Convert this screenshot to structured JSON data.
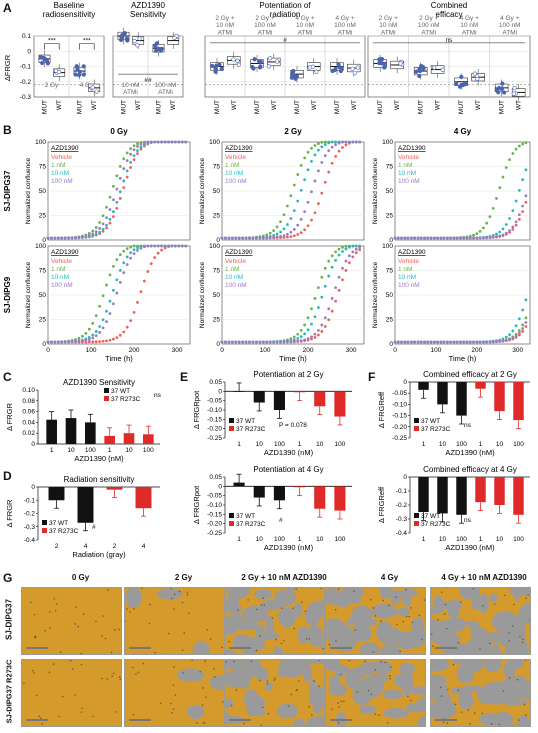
{
  "panel_letters": {
    "A": "A",
    "B": "B",
    "C": "C",
    "D": "D",
    "E": "E",
    "F": "F",
    "G": "G"
  },
  "colors": {
    "mut": "#4a64b0",
    "vehicle": "#f0605a",
    "c1": "#6ab24a",
    "c10": "#29b7b9",
    "c100": "#9a7ac4",
    "wt_bar": "#111111",
    "r273c_bar": "#e02a2a",
    "cell_orange": "#d59a2c",
    "cell_gray": "#9a9a9a"
  },
  "panelA": {
    "ylabel": "ΔFRGR",
    "yticks": [
      "0.1",
      "0",
      "-0.1",
      "-0.2",
      "-0.3"
    ],
    "groups": [
      {
        "title": "Baseline\nradiosensitivity",
        "header": [
          "",
          ""
        ],
        "sig_top": [
          "***",
          "***"
        ],
        "subs": [
          {
            "under": "2 Gy",
            "cats": [
              "MUT",
              "WT"
            ]
          },
          {
            "under": "4 Gy",
            "cats": [
              "MUT",
              "WT"
            ]
          }
        ]
      },
      {
        "title": "AZD1390\nSensitivity",
        "sig_bottom": "##",
        "subs": [
          {
            "under": "10 nM\nATMi",
            "cats": [
              "MUT",
              "WT"
            ]
          },
          {
            "under": "100 nM\nATMi",
            "cats": [
              "MUT",
              "WT"
            ]
          }
        ]
      },
      {
        "title": "Potentiation of\nradiation",
        "sig_mid": "#",
        "subs": [
          {
            "header": "2 Gy +\n10 nM\nATMi",
            "cats": [
              "MUT",
              "WT"
            ]
          },
          {
            "header": "2 Gy +\n100 nM\nATMi",
            "cats": [
              "MUT",
              "WT"
            ]
          },
          {
            "header": "4 Gy +\n10 nM\nATMi",
            "cats": [
              "MUT",
              "WT"
            ]
          },
          {
            "header": "4 Gy +\n100 nM\nATMi",
            "cats": [
              "MUT",
              "WT"
            ]
          }
        ]
      },
      {
        "title": "Combined\nefficacy",
        "sig_mid": "ns",
        "subs": [
          {
            "header": "2 Gy +\n10 nM\nATMi",
            "cats": [
              "MUT",
              "WT"
            ]
          },
          {
            "header": "2 Gy +\n100 nM\nATMi",
            "cats": [
              "MUT",
              "WT"
            ]
          },
          {
            "header": "4 Gy +\n10 nM\nATMi",
            "cats": [
              "MUT",
              "WT"
            ]
          },
          {
            "header": "4 Gy +\n100 nM\nATMi",
            "cats": [
              "MUT",
              "WT"
            ]
          }
        ]
      }
    ]
  },
  "panelB": {
    "col_titles": [
      "0 Gy",
      "2 Gy",
      "4 Gy"
    ],
    "row_titles": [
      "SJ-DIPG37",
      "SJ-DIPG9"
    ],
    "ylabel": "Normalized confluence",
    "xlabel": "Time (h)",
    "xticks": [
      "0",
      "100",
      "200",
      "300"
    ],
    "yticks": [
      "100",
      "75",
      "50",
      "25",
      "0"
    ],
    "legend_title": "AZD1390",
    "legend": [
      "Vehicle",
      "1 nM",
      "10 nM",
      "100 nM"
    ]
  },
  "chart_data": [
    {
      "type": "bar",
      "panel": "C",
      "title": "AZD1390 Sensitivity",
      "ylabel": "Δ FRGR",
      "xlabel": "AZD1390 (nM)",
      "categories": [
        "1",
        "10",
        "100"
      ],
      "ylim": [
        0,
        0.1
      ],
      "yticks": [
        "0.10",
        "0.08",
        "0.06",
        "0.04",
        "0.02",
        "0"
      ],
      "series": [
        {
          "name": "37 WT",
          "values": [
            0.045,
            0.048,
            0.04
          ]
        },
        {
          "name": "37 R273C",
          "values": [
            0.015,
            0.02,
            0.018
          ]
        }
      ],
      "annotation": "ns"
    },
    {
      "type": "bar",
      "panel": "D",
      "title": "Radiation sensitivity",
      "ylabel": "Δ FRGR",
      "xlabel": "Radiation (gray)",
      "categories": [
        "2",
        "4"
      ],
      "ylim": [
        -0.4,
        0
      ],
      "yticks": [
        "0",
        "-0.1",
        "-0.2",
        "-0.3",
        "-0.4"
      ],
      "series": [
        {
          "name": "37 WT",
          "values": [
            -0.1,
            -0.27
          ]
        },
        {
          "name": "37 R273C",
          "values": [
            -0.02,
            -0.16
          ]
        }
      ],
      "annotation": "#"
    },
    {
      "type": "bar",
      "panel": "E1",
      "title": "Potentiation at 2 Gy",
      "ylabel": "Δ FRGRpot",
      "xlabel": "AZD1390 (nM)",
      "categories": [
        "1",
        "10",
        "100"
      ],
      "ylim": [
        -0.25,
        0.05
      ],
      "yticks": [
        "0.05",
        "0",
        "-0.05",
        "-0.10",
        "-0.15",
        "-0.20",
        "-0.25"
      ],
      "series": [
        {
          "name": "37 WT",
          "values": [
            0.0,
            -0.06,
            -0.1
          ]
        },
        {
          "name": "37 R273C",
          "values": [
            -0.005,
            -0.08,
            -0.135
          ]
        }
      ],
      "annotation": "P = 0.078"
    },
    {
      "type": "bar",
      "panel": "E2",
      "title": "Potentiation at 4 Gy",
      "ylabel": "Δ FRGRpot",
      "xlabel": "AZD1390 (nM)",
      "categories": [
        "1",
        "10",
        "100"
      ],
      "ylim": [
        -0.25,
        0.05
      ],
      "yticks": [
        "0.05",
        "0",
        "-0.05",
        "-0.10",
        "-0.15",
        "-0.20",
        "-0.25"
      ],
      "series": [
        {
          "name": "37 WT",
          "values": [
            0.02,
            -0.06,
            -0.075
          ]
        },
        {
          "name": "37 R273C",
          "values": [
            -0.005,
            -0.12,
            -0.13
          ]
        }
      ],
      "annotation": "#"
    },
    {
      "type": "bar",
      "panel": "F1",
      "title": "Combined efficacy at 2 Gy",
      "ylabel": "Δ FRGReff",
      "xlabel": "AZD1390 (nM)",
      "categories": [
        "1",
        "10",
        "100"
      ],
      "ylim": [
        -0.25,
        0
      ],
      "yticks": [
        "0",
        "-0.05",
        "-0.10",
        "-0.15",
        "-0.20",
        "-0.25"
      ],
      "series": [
        {
          "name": "37 WT",
          "values": [
            -0.035,
            -0.1,
            -0.15
          ]
        },
        {
          "name": "37 R273C",
          "values": [
            -0.03,
            -0.13,
            -0.17
          ]
        }
      ],
      "annotation": "ns"
    },
    {
      "type": "bar",
      "panel": "F2",
      "title": "Combined efficacy at 4 Gy",
      "ylabel": "Δ FRGReff",
      "xlabel": "AZD1390 (nM)",
      "categories": [
        "1",
        "10",
        "100"
      ],
      "ylim": [
        -0.4,
        0
      ],
      "yticks": [
        "0",
        "-0.1",
        "-0.2",
        "-0.3",
        "-0.4"
      ],
      "series": [
        {
          "name": "37 WT",
          "values": [
            -0.25,
            -0.26,
            -0.27
          ]
        },
        {
          "name": "37 R273C",
          "values": [
            -0.18,
            -0.2,
            -0.27
          ]
        }
      ],
      "annotation": "ns"
    }
  ],
  "panelG": {
    "col_titles": [
      "0 Gy",
      "2 Gy",
      "2 Gy + 10 nM AZD1390",
      "4 Gy",
      "4 Gy + 10 nM AZD1390"
    ],
    "row_titles": [
      "SJ-DIPG37",
      "SJ-DIPG37 R273C"
    ],
    "gray_fraction": [
      [
        0.0,
        0.05,
        0.55,
        0.6,
        0.7
      ],
      [
        0.0,
        0.05,
        0.45,
        0.45,
        0.55
      ]
    ]
  }
}
